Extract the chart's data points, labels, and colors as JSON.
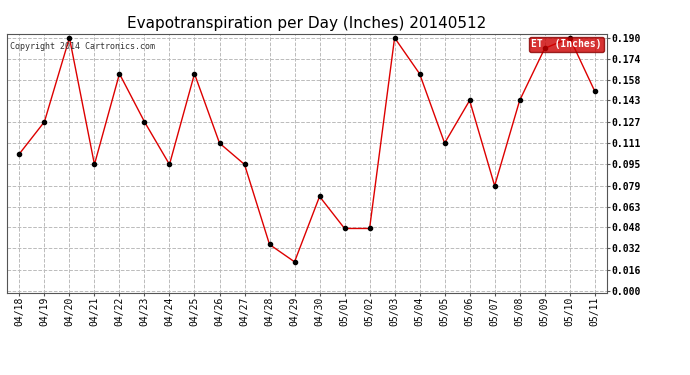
{
  "title": "Evapotranspiration per Day (Inches) 20140512",
  "copyright_text": "Copyright 2014 Cartronics.com",
  "legend_label": "ET  (Inches)",
  "legend_bg": "#cc0000",
  "legend_text_color": "#ffffff",
  "x_labels": [
    "04/18",
    "04/19",
    "04/20",
    "04/21",
    "04/22",
    "04/23",
    "04/24",
    "04/25",
    "04/26",
    "04/27",
    "04/28",
    "04/29",
    "04/30",
    "05/01",
    "05/02",
    "05/03",
    "05/04",
    "05/05",
    "05/06",
    "05/07",
    "05/08",
    "05/09",
    "05/10",
    "05/11"
  ],
  "y_values": [
    0.103,
    0.127,
    0.19,
    0.095,
    0.163,
    0.127,
    0.095,
    0.163,
    0.111,
    0.095,
    0.035,
    0.022,
    0.071,
    0.047,
    0.047,
    0.19,
    0.163,
    0.111,
    0.143,
    0.079,
    0.143,
    0.182,
    0.19,
    0.15
  ],
  "y_min": 0.0,
  "y_max": 0.19,
  "y_ticks": [
    0.0,
    0.016,
    0.032,
    0.048,
    0.063,
    0.079,
    0.095,
    0.111,
    0.127,
    0.143,
    0.158,
    0.174,
    0.19
  ],
  "line_color": "#dd0000",
  "marker_color": "#000000",
  "marker_size": 3,
  "bg_color": "#ffffff",
  "plot_bg_color": "#ffffff",
  "grid_color": "#bbbbbb",
  "title_fontsize": 11,
  "tick_fontsize": 7,
  "copyright_fontsize": 6
}
